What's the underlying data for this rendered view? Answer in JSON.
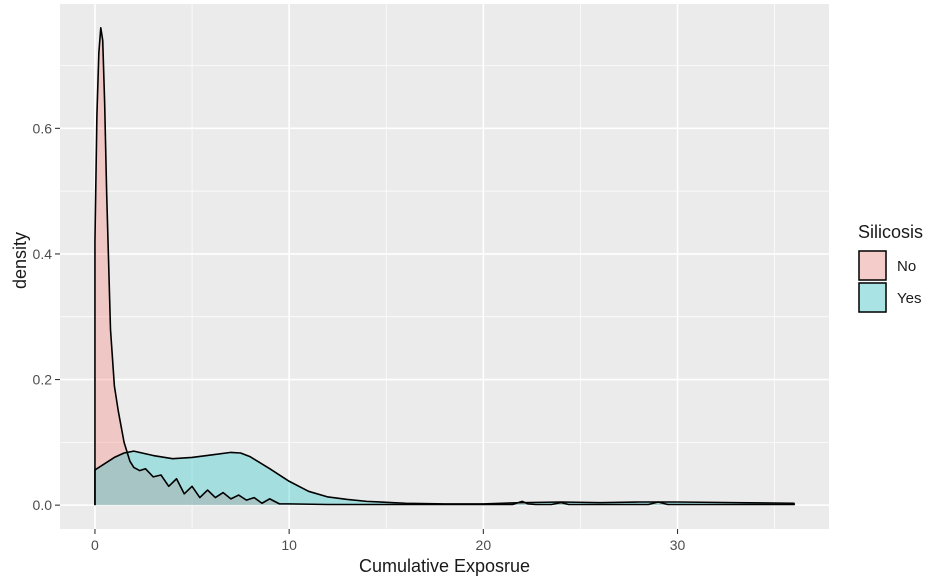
{
  "chart_data": {
    "type": "area",
    "title": "",
    "xlabel": "Cumulative Exposrue",
    "ylabel": "density",
    "xlim": [
      -1.8,
      37.8
    ],
    "ylim": [
      -0.038,
      0.798
    ],
    "x_ticks": [
      0,
      10,
      20,
      30
    ],
    "x_tick_labels": [
      "0",
      "10",
      "20",
      "30"
    ],
    "y_ticks": [
      0.0,
      0.2,
      0.4,
      0.6
    ],
    "y_tick_labels": [
      "0.0",
      "0.2",
      "0.4",
      "0.6"
    ],
    "x_minor_ticks": [
      5,
      15,
      25,
      35
    ],
    "y_minor_ticks": [
      0.1,
      0.3,
      0.5,
      0.7
    ],
    "grid": true,
    "panel_background": "#ebebeb",
    "grid_color": "#ffffff",
    "legend": {
      "title": "Silicosis",
      "placement": "right",
      "entries": [
        {
          "label": "No",
          "color": "#f8766d"
        },
        {
          "label": "Yes",
          "color": "#00bfc4"
        }
      ]
    },
    "series": [
      {
        "name": "No",
        "color": "#f8766d",
        "x": [
          0.0,
          0.1,
          0.2,
          0.3,
          0.4,
          0.5,
          0.6,
          0.8,
          1.0,
          1.2,
          1.5,
          1.8,
          2.0,
          2.3,
          2.6,
          3.0,
          3.4,
          3.8,
          4.2,
          4.6,
          5.0,
          5.4,
          5.8,
          6.2,
          6.6,
          7.0,
          7.4,
          7.8,
          8.2,
          8.6,
          9.0,
          9.5,
          10.0,
          12.0,
          15.0,
          18.0,
          20.0,
          21.5,
          22.0,
          22.3,
          22.7,
          23.5,
          24.0,
          24.4,
          25.0,
          27.0,
          28.5,
          29.0,
          29.5,
          31.0,
          33.0,
          36.0
        ],
        "y": [
          0.42,
          0.62,
          0.72,
          0.76,
          0.74,
          0.64,
          0.5,
          0.28,
          0.19,
          0.15,
          0.1,
          0.07,
          0.06,
          0.055,
          0.058,
          0.045,
          0.048,
          0.03,
          0.042,
          0.018,
          0.03,
          0.012,
          0.024,
          0.012,
          0.02,
          0.01,
          0.016,
          0.008,
          0.012,
          0.003,
          0.01,
          0.002,
          0.002,
          0.001,
          0.001,
          0.001,
          0.001,
          0.001,
          0.006,
          0.002,
          0.001,
          0.001,
          0.004,
          0.001,
          0.001,
          0.001,
          0.001,
          0.005,
          0.001,
          0.001,
          0.001,
          0.001
        ]
      },
      {
        "name": "Yes",
        "color": "#00bfc4",
        "x": [
          0.0,
          0.5,
          1.0,
          1.5,
          2.0,
          3.0,
          4.0,
          5.0,
          6.0,
          7.0,
          7.5,
          8.0,
          9.0,
          10.0,
          11.0,
          12.0,
          13.0,
          14.0,
          16.0,
          18.0,
          20.0,
          22.0,
          24.0,
          26.0,
          28.0,
          30.0,
          33.0,
          36.0
        ],
        "y": [
          0.056,
          0.066,
          0.076,
          0.083,
          0.086,
          0.079,
          0.074,
          0.076,
          0.08,
          0.084,
          0.083,
          0.077,
          0.058,
          0.038,
          0.022,
          0.013,
          0.009,
          0.006,
          0.003,
          0.002,
          0.002,
          0.004,
          0.005,
          0.004,
          0.005,
          0.005,
          0.004,
          0.003
        ]
      }
    ]
  }
}
